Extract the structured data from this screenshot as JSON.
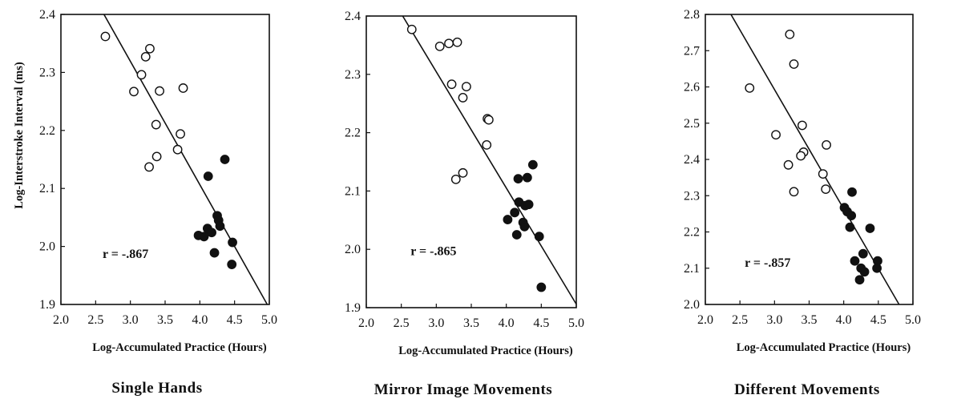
{
  "chart_data": [
    {
      "type": "scatter",
      "caption": "Single Hands",
      "xlabel": "Log-Accumulated Practice (Hours)",
      "ylabel": "Log-Interstroke Interval (ms)",
      "xlim": [
        2.0,
        5.0
      ],
      "ylim": [
        1.9,
        2.4
      ],
      "xticks": [
        "2.0",
        "2.5",
        "3.0",
        "3.5",
        "4.0",
        "4.5",
        "5.0"
      ],
      "yticks": [
        "1.9",
        "2.0",
        "2.1",
        "2.2",
        "2.3",
        "2.4"
      ],
      "annotation": "r = -.867",
      "fit_line": [
        [
          2.62,
          2.4
        ],
        [
          4.97,
          1.9
        ]
      ],
      "series": [
        {
          "fill": "open",
          "points": [
            [
              2.64,
              2.362
            ],
            [
              3.28,
              2.341
            ],
            [
              3.22,
              2.327
            ],
            [
              3.16,
              2.296
            ],
            [
              3.05,
              2.267
            ],
            [
              3.42,
              2.268
            ],
            [
              3.76,
              2.273
            ],
            [
              3.37,
              2.21
            ],
            [
              3.72,
              2.194
            ],
            [
              3.68,
              2.167
            ],
            [
              3.38,
              2.155
            ],
            [
              3.27,
              2.137
            ]
          ]
        },
        {
          "fill": "filled",
          "points": [
            [
              4.12,
              2.121
            ],
            [
              4.36,
              2.15
            ],
            [
              4.25,
              2.053
            ],
            [
              4.27,
              2.045
            ],
            [
              4.29,
              2.035
            ],
            [
              4.11,
              2.031
            ],
            [
              3.98,
              2.019
            ],
            [
              4.06,
              2.017
            ],
            [
              4.17,
              2.024
            ],
            [
              4.47,
              2.007
            ],
            [
              4.21,
              1.989
            ],
            [
              4.46,
              1.969
            ]
          ]
        }
      ]
    },
    {
      "type": "scatter",
      "caption": "Mirror Image Movements",
      "xlabel": "Log-Accumulated Practice (Hours)",
      "ylabel": "",
      "xlim": [
        2.0,
        5.0
      ],
      "ylim": [
        1.9,
        2.4
      ],
      "xticks": [
        "2.0",
        "2.5",
        "3.0",
        "3.5",
        "4.0",
        "4.5",
        "5.0"
      ],
      "yticks": [
        "1.9",
        "2.0",
        "2.1",
        "2.2",
        "2.3",
        "2.4"
      ],
      "annotation": "r = -.865",
      "fit_line": [
        [
          2.52,
          2.4
        ],
        [
          5.0,
          1.906
        ]
      ],
      "series": [
        {
          "fill": "open",
          "points": [
            [
              2.65,
              2.377
            ],
            [
              3.05,
              2.348
            ],
            [
              3.18,
              2.353
            ],
            [
              3.3,
              2.355
            ],
            [
              3.22,
              2.283
            ],
            [
              3.43,
              2.279
            ],
            [
              3.38,
              2.26
            ],
            [
              3.73,
              2.224
            ],
            [
              3.75,
              2.222
            ],
            [
              3.72,
              2.179
            ],
            [
              3.38,
              2.131
            ],
            [
              3.28,
              2.12
            ]
          ]
        },
        {
          "fill": "filled",
          "points": [
            [
              4.38,
              2.145
            ],
            [
              4.17,
              2.121
            ],
            [
              4.3,
              2.123
            ],
            [
              4.18,
              2.081
            ],
            [
              4.27,
              2.075
            ],
            [
              4.32,
              2.077
            ],
            [
              4.12,
              2.063
            ],
            [
              4.02,
              2.051
            ],
            [
              4.24,
              2.046
            ],
            [
              4.26,
              2.039
            ],
            [
              4.15,
              2.025
            ],
            [
              4.47,
              2.022
            ],
            [
              4.5,
              1.935
            ]
          ]
        }
      ]
    },
    {
      "type": "scatter",
      "caption": "Different Movements",
      "xlabel": "Log-Accumulated Practice (Hours)",
      "ylabel": "",
      "xlim": [
        2.0,
        5.0
      ],
      "ylim": [
        2.0,
        2.8
      ],
      "xticks": [
        "2.0",
        "2.5",
        "3.0",
        "3.5",
        "4.0",
        "4.5",
        "5.0"
      ],
      "yticks": [
        "2.0",
        "2.1",
        "2.2",
        "2.3",
        "2.4",
        "2.5",
        "2.6",
        "2.7",
        "2.8"
      ],
      "annotation": "r = -.857",
      "fit_line": [
        [
          2.37,
          2.8
        ],
        [
          4.8,
          2.0
        ]
      ],
      "series": [
        {
          "fill": "open",
          "points": [
            [
              3.22,
              2.745
            ],
            [
              3.28,
              2.663
            ],
            [
              2.64,
              2.597
            ],
            [
              3.4,
              2.494
            ],
            [
              3.02,
              2.468
            ],
            [
              3.75,
              2.44
            ],
            [
              3.42,
              2.42
            ],
            [
              3.38,
              2.41
            ],
            [
              3.2,
              2.385
            ],
            [
              3.7,
              2.36
            ],
            [
              3.28,
              2.311
            ],
            [
              3.74,
              2.318
            ]
          ]
        },
        {
          "fill": "filled",
          "points": [
            [
              4.12,
              2.31
            ],
            [
              4.01,
              2.267
            ],
            [
              4.05,
              2.256
            ],
            [
              4.11,
              2.245
            ],
            [
              4.09,
              2.213
            ],
            [
              4.38,
              2.21
            ],
            [
              4.28,
              2.14
            ],
            [
              4.16,
              2.12
            ],
            [
              4.49,
              2.12
            ],
            [
              4.25,
              2.1
            ],
            [
              4.48,
              2.1
            ],
            [
              4.3,
              2.09
            ],
            [
              4.23,
              2.068
            ]
          ]
        }
      ]
    }
  ]
}
